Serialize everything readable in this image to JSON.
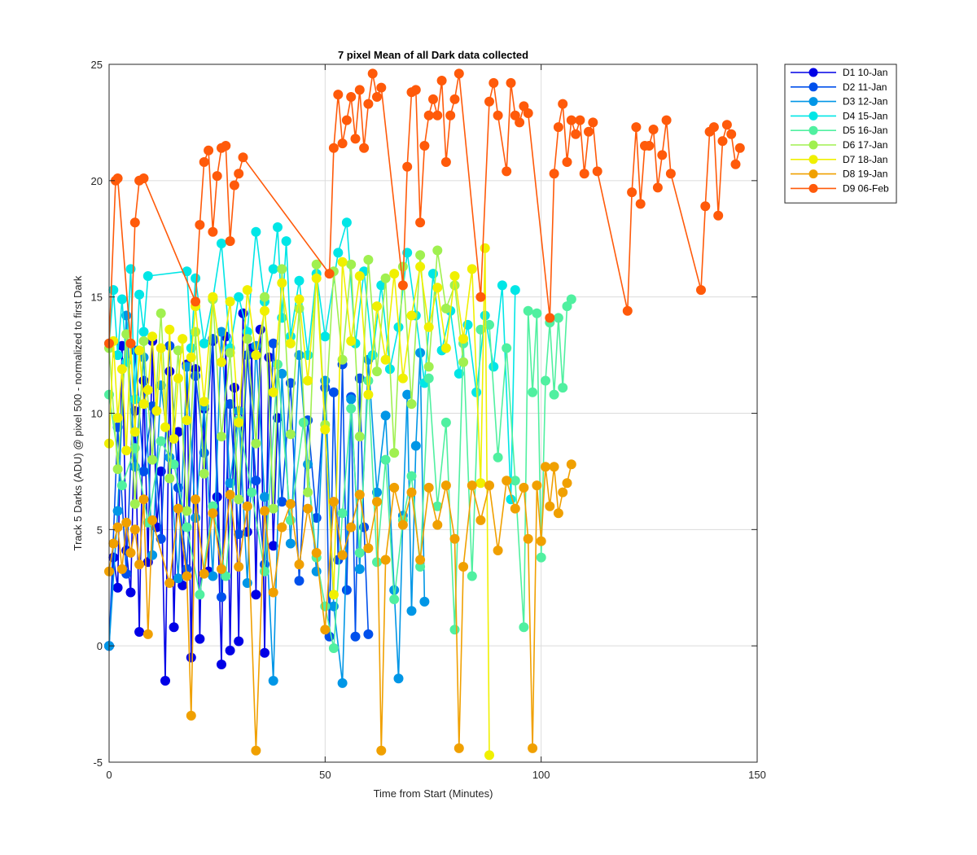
{
  "chart_data": {
    "type": "line",
    "title": "7 pixel Mean of all Dark data collected",
    "xlabel": "Time from Start (Minutes)",
    "ylabel": "Track 5 Darks (ADU) @ pixel 500 - normalized to first Dark",
    "xlim": [
      0,
      150
    ],
    "ylim": [
      -5,
      25
    ],
    "xticks": [
      "0",
      "50",
      "100",
      "150"
    ],
    "yticks": [
      "-5",
      "0",
      "5",
      "10",
      "15",
      "20",
      "25"
    ],
    "grid": true,
    "legend_position": "outside-top-right",
    "series": [
      {
        "name": "D1 10-Jan",
        "color": "#0000e6",
        "x": [
          0,
          1,
          2,
          3,
          4,
          5,
          6,
          7,
          8,
          9,
          10,
          11,
          12,
          13,
          14,
          15,
          16,
          17,
          18,
          19,
          20,
          21,
          22,
          23,
          24,
          25,
          26,
          27,
          28,
          29,
          30,
          31,
          32,
          33,
          34,
          35,
          36,
          37,
          38,
          39
        ],
        "y": [
          0,
          3.8,
          2.5,
          12.9,
          4.1,
          2.3,
          10.1,
          0.6,
          11.4,
          3.6,
          13.1,
          5.1,
          7.5,
          -1.5,
          11.8,
          0.8,
          9.2,
          2.6,
          12.1,
          -0.5,
          11.9,
          0.3,
          10.2,
          3.2,
          13.1,
          6.4,
          -0.8,
          13.3,
          -0.2,
          11.1,
          0.2,
          14.3,
          4.9,
          12.8,
          2.2,
          13.6,
          -0.3,
          12.4,
          4.3,
          9.8
        ]
      },
      {
        "name": "D2 11-Jan",
        "color": "#0050ec",
        "x": [
          0,
          2,
          4,
          6,
          8,
          10,
          12,
          14,
          16,
          18,
          20,
          22,
          24,
          26,
          28,
          30,
          32,
          34,
          36,
          38,
          40,
          42,
          44,
          46,
          48,
          50,
          51,
          52,
          53,
          54,
          55,
          56,
          57,
          58,
          59,
          60
        ],
        "y": [
          0,
          9.4,
          3.1,
          12.7,
          7.5,
          10.3,
          4.6,
          12.9,
          6.8,
          3.3,
          11.6,
          8.3,
          13.2,
          2.1,
          10.4,
          4.8,
          12.5,
          7.1,
          3.5,
          13.0,
          6.2,
          11.3,
          2.8,
          9.7,
          5.5,
          11.1,
          0.4,
          10.9,
          3.7,
          12.1,
          2.4,
          10.7,
          0.4,
          11.5,
          5.1,
          0.5
        ]
      },
      {
        "name": "D3 12-Jan",
        "color": "#0096e6",
        "x": [
          0,
          2,
          4,
          6,
          8,
          10,
          12,
          14,
          16,
          18,
          20,
          22,
          24,
          26,
          28,
          30,
          32,
          34,
          36,
          38,
          40,
          42,
          44,
          46,
          48,
          50,
          52,
          54,
          56,
          58,
          60,
          62,
          64,
          66,
          67,
          68,
          69,
          70,
          71,
          72,
          73
        ],
        "y": [
          0,
          5.8,
          14.2,
          7.7,
          12.4,
          3.9,
          11.2,
          8.1,
          2.9,
          12.0,
          5.5,
          10.3,
          3.0,
          13.5,
          7.0,
          10.1,
          2.7,
          12.9,
          6.4,
          -1.5,
          11.7,
          4.4,
          12.5,
          7.8,
          3.2,
          11.4,
          1.7,
          -1.6,
          10.6,
          3.3,
          12.3,
          6.6,
          9.9,
          2.4,
          -1.4,
          5.6,
          10.8,
          1.5,
          8.6,
          12.6,
          1.9
        ]
      },
      {
        "name": "D4 15-Jan",
        "color": "#00e6e6",
        "x": [
          0,
          1,
          2,
          3,
          4,
          5,
          6,
          7,
          8,
          9,
          18,
          19,
          20,
          22,
          24,
          26,
          28,
          30,
          32,
          34,
          36,
          38,
          39,
          40,
          41,
          42,
          44,
          46,
          48,
          50,
          53,
          55,
          57,
          59,
          61,
          63,
          65,
          67,
          69,
          71,
          73,
          75,
          77,
          79,
          81,
          83,
          85,
          87,
          89,
          91,
          93,
          94
        ],
        "y": [
          13.0,
          15.3,
          12.5,
          14.9,
          12.2,
          16.2,
          10.6,
          15.1,
          13.5,
          15.9,
          16.1,
          12.8,
          15.8,
          13.0,
          14.9,
          17.3,
          12.8,
          15.0,
          13.5,
          17.8,
          14.8,
          16.2,
          18.0,
          14.1,
          17.4,
          13.3,
          15.7,
          12.5,
          16.0,
          13.3,
          16.9,
          18.2,
          13.0,
          16.1,
          12.5,
          15.5,
          11.9,
          13.7,
          16.9,
          14.2,
          11.3,
          16.0,
          12.7,
          14.4,
          11.7,
          13.8,
          10.9,
          14.2,
          12.0,
          15.5,
          6.3,
          15.3
        ]
      },
      {
        "name": "D5 16-Jan",
        "color": "#50f0a0",
        "x": [
          0,
          3,
          6,
          9,
          12,
          15,
          18,
          21,
          24,
          27,
          30,
          33,
          36,
          39,
          42,
          45,
          48,
          50,
          52,
          54,
          56,
          58,
          60,
          62,
          64,
          66,
          68,
          70,
          72,
          74,
          76,
          78,
          80,
          82,
          84,
          86,
          88,
          90,
          92,
          94,
          96,
          97,
          98,
          99,
          100,
          101,
          102,
          103,
          104,
          105,
          106,
          107
        ],
        "y": [
          10.8,
          6.9,
          8.5,
          5.3,
          8.8,
          7.8,
          5.1,
          2.2,
          6.0,
          3.0,
          9.7,
          6.6,
          3.2,
          12.1,
          5.4,
          9.6,
          3.8,
          1.7,
          -0.1,
          5.7,
          10.2,
          4.0,
          11.4,
          3.6,
          8.0,
          2.0,
          5.4,
          7.3,
          3.4,
          11.5,
          6.0,
          9.6,
          0.7,
          13.0,
          3.0,
          13.6,
          13.8,
          8.1,
          12.8,
          7.1,
          0.8,
          14.4,
          10.9,
          14.3,
          3.8,
          11.4,
          13.9,
          10.8,
          14.1,
          11.1,
          14.6,
          14.9
        ]
      },
      {
        "name": "D6 17-Jan",
        "color": "#a0f050",
        "x": [
          0,
          2,
          4,
          6,
          8,
          10,
          12,
          14,
          16,
          18,
          20,
          22,
          24,
          26,
          28,
          30,
          32,
          34,
          36,
          38,
          40,
          42,
          44,
          46,
          48,
          50,
          52,
          54,
          56,
          58,
          60,
          62,
          64,
          66,
          68,
          70,
          72,
          74,
          76,
          78,
          80,
          82
        ],
        "y": [
          12.8,
          7.6,
          13.4,
          6.1,
          13.1,
          8.0,
          14.3,
          7.2,
          12.7,
          5.8,
          13.5,
          7.4,
          14.9,
          9.0,
          12.6,
          6.3,
          13.2,
          8.7,
          15.0,
          5.9,
          16.2,
          9.1,
          14.5,
          6.6,
          16.4,
          9.5,
          16.1,
          12.3,
          16.4,
          9.0,
          16.6,
          11.8,
          15.8,
          8.3,
          16.3,
          10.4,
          16.8,
          12.0,
          17.0,
          14.5,
          15.5,
          12.2
        ]
      },
      {
        "name": "D7 18-Jan",
        "color": "#f0f000",
        "x": [
          0,
          1,
          2,
          3,
          4,
          5,
          6,
          7,
          8,
          9,
          10,
          11,
          12,
          13,
          14,
          15,
          16,
          17,
          18,
          19,
          20,
          22,
          24,
          26,
          28,
          30,
          32,
          34,
          36,
          38,
          40,
          42,
          44,
          46,
          48,
          50,
          52,
          54,
          56,
          58,
          60,
          62,
          64,
          66,
          68,
          70,
          72,
          74,
          76,
          78,
          80,
          82,
          84,
          86,
          87,
          88
        ],
        "y": [
          8.7,
          13.1,
          9.8,
          11.9,
          8.4,
          13.0,
          9.2,
          12.7,
          10.4,
          11.0,
          13.3,
          10.1,
          12.8,
          9.4,
          13.6,
          8.9,
          11.5,
          13.2,
          9.7,
          12.4,
          14.6,
          10.5,
          15.0,
          12.2,
          14.8,
          9.6,
          15.3,
          12.5,
          14.4,
          10.9,
          15.6,
          13.0,
          14.9,
          11.4,
          15.8,
          9.3,
          2.2,
          16.5,
          13.1,
          15.9,
          10.8,
          14.6,
          12.3,
          16.0,
          11.5,
          14.2,
          16.3,
          13.7,
          15.4,
          12.8,
          15.9,
          13.2,
          16.2,
          7.0,
          17.1,
          -4.7
        ]
      },
      {
        "name": "D8 19-Jan",
        "color": "#f0a000",
        "x": [
          0,
          1,
          2,
          3,
          4,
          5,
          6,
          7,
          8,
          9,
          10,
          14,
          16,
          18,
          19,
          20,
          22,
          24,
          26,
          28,
          30,
          32,
          34,
          36,
          38,
          40,
          42,
          44,
          46,
          48,
          50,
          52,
          54,
          56,
          58,
          60,
          62,
          63,
          64,
          66,
          68,
          70,
          72,
          74,
          76,
          78,
          80,
          81,
          82,
          84,
          86,
          88,
          90,
          92,
          94,
          96,
          97,
          98,
          99,
          100,
          101,
          102,
          103,
          104,
          105,
          106,
          107
        ],
        "y": [
          3.2,
          4.4,
          5.1,
          3.3,
          5.3,
          4.0,
          5.0,
          3.5,
          6.3,
          0.5,
          5.4,
          2.7,
          5.9,
          3.0,
          -3.0,
          6.3,
          3.1,
          5.7,
          3.3,
          6.5,
          3.4,
          6.0,
          -4.5,
          5.8,
          2.3,
          5.1,
          6.1,
          3.5,
          5.9,
          4.0,
          0.7,
          6.2,
          3.9,
          5.1,
          6.5,
          4.2,
          6.2,
          -4.5,
          3.7,
          6.8,
          5.2,
          6.6,
          3.7,
          6.8,
          5.2,
          6.9,
          4.6,
          -4.4,
          3.4,
          6.9,
          5.4,
          6.9,
          4.1,
          7.1,
          5.9,
          6.8,
          4.6,
          -4.4,
          6.9,
          4.5,
          7.7,
          6.0,
          7.7,
          5.7,
          6.6,
          7.0,
          7.8
        ]
      },
      {
        "name": "D9 06-Feb",
        "color": "#ff5a0a",
        "x": [
          0,
          1.5,
          2,
          5,
          6,
          7,
          8,
          20,
          21,
          22,
          23,
          24,
          25,
          26,
          27,
          28,
          29,
          30,
          31,
          51,
          52,
          53,
          54,
          55,
          56,
          57,
          58,
          59,
          60,
          61,
          62,
          63,
          68,
          69,
          70,
          71,
          72,
          73,
          74,
          75,
          76,
          77,
          78,
          79,
          80,
          81,
          86,
          88,
          89,
          90,
          92,
          93,
          94,
          95,
          96,
          97,
          102,
          103,
          104,
          105,
          106,
          107,
          108,
          109,
          110,
          111,
          112,
          113,
          120,
          121,
          122,
          123,
          124,
          125,
          126,
          127,
          128,
          129,
          130,
          137,
          138,
          139,
          140,
          141,
          142,
          143,
          144,
          145,
          146
        ],
        "y": [
          13.0,
          20.0,
          20.1,
          13.0,
          18.2,
          20.0,
          20.1,
          14.8,
          18.1,
          20.8,
          21.3,
          17.8,
          20.2,
          21.4,
          21.5,
          17.4,
          19.8,
          20.3,
          21.0,
          16.0,
          21.4,
          23.7,
          21.6,
          22.6,
          23.6,
          21.8,
          23.9,
          21.4,
          23.3,
          24.6,
          23.6,
          24.0,
          15.5,
          20.6,
          23.8,
          23.9,
          18.2,
          21.5,
          22.8,
          23.5,
          22.8,
          24.3,
          20.8,
          22.8,
          23.5,
          24.6,
          15.0,
          23.4,
          24.2,
          22.8,
          20.4,
          24.2,
          22.8,
          22.5,
          23.2,
          22.9,
          14.1,
          20.3,
          22.3,
          23.3,
          20.8,
          22.6,
          22.0,
          22.6,
          20.3,
          22.1,
          22.5,
          20.4,
          14.4,
          19.5,
          22.3,
          19.0,
          21.5,
          21.5,
          22.2,
          19.7,
          21.1,
          22.6,
          20.3,
          15.3,
          18.9,
          22.1,
          22.3,
          18.5,
          21.7,
          22.4,
          22.0,
          20.7,
          21.4
        ]
      }
    ]
  }
}
